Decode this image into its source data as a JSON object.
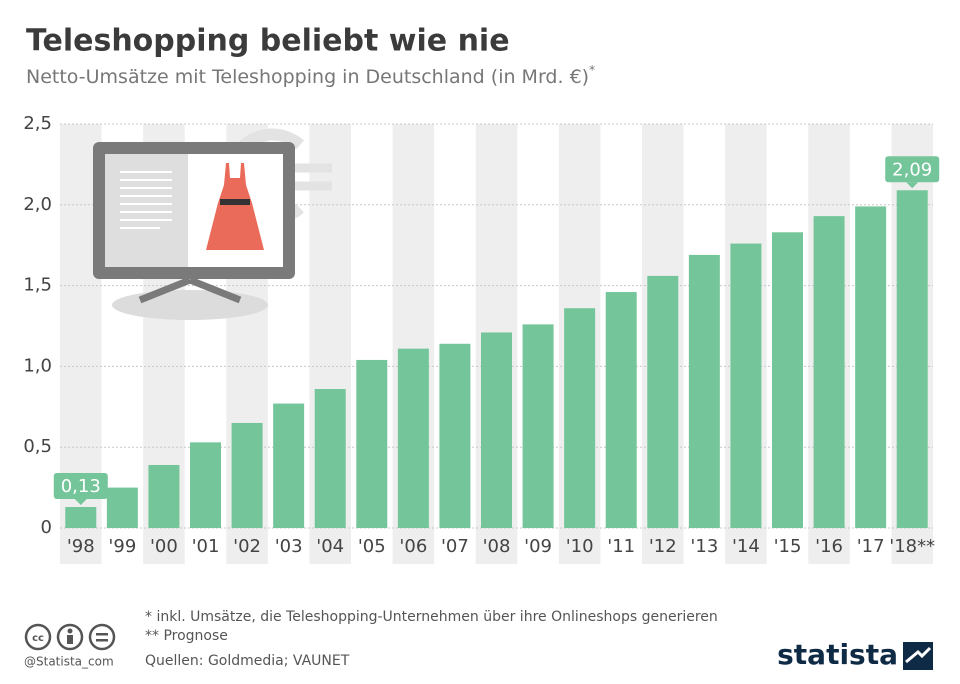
{
  "chart_data": {
    "type": "bar",
    "title": "Teleshopping beliebt wie nie",
    "subtitle": "Netto-Umsätze mit Teleshopping in Deutschland (in Mrd. €)",
    "subtitle_note": "*",
    "categories": [
      "'98",
      "'99",
      "'00",
      "'01",
      "'02",
      "'03",
      "'04",
      "'05",
      "'06",
      "'07",
      "'08",
      "'09",
      "'10",
      "'11",
      "'12",
      "'13",
      "'14",
      "'15",
      "'16",
      "'17",
      "'18**"
    ],
    "values": [
      0.13,
      0.25,
      0.39,
      0.53,
      0.65,
      0.77,
      0.86,
      1.04,
      1.11,
      1.14,
      1.21,
      1.26,
      1.36,
      1.46,
      1.56,
      1.69,
      1.76,
      1.83,
      1.93,
      1.99,
      2.09
    ],
    "value_labels": [
      "0,13",
      null,
      null,
      null,
      null,
      null,
      null,
      null,
      null,
      null,
      null,
      null,
      null,
      null,
      null,
      null,
      null,
      null,
      null,
      null,
      "2,09"
    ],
    "color": "#74c69a",
    "ylim": [
      0,
      2.5
    ],
    "yticks": [
      0,
      {
        "value": 0.5,
        "label": "0,5"
      },
      {
        "value": 1,
        "label": "1,0"
      },
      {
        "value": 1.5,
        "label": "1,5"
      },
      {
        "value": 2,
        "label": "2,0"
      },
      {
        "value": 2.5,
        "label": "2,5"
      }
    ],
    "grid": true
  },
  "footer": {
    "notes": [
      "*   inkl. Umsätze, die Teleshopping-Unternehmen über ihre Onlineshops generieren",
      "** Prognose",
      "Quellen: Goldmedia; VAUNET"
    ],
    "handle": "@Statista_com",
    "brand": "statista"
  }
}
